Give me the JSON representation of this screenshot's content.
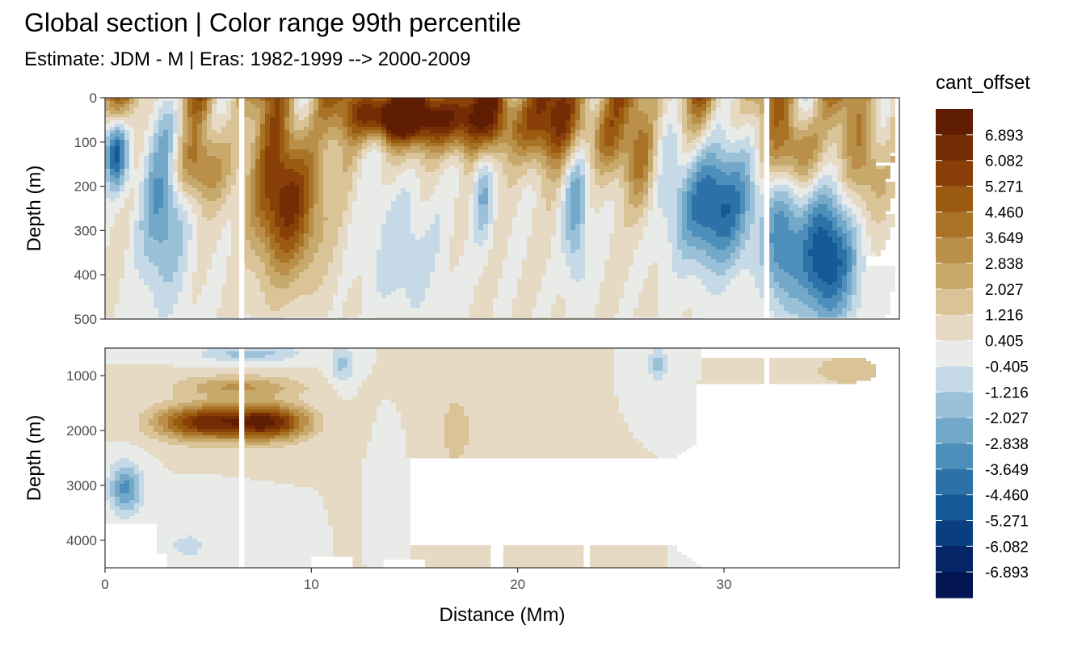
{
  "chart_data": {
    "type": "heatmap",
    "title": "Global section | Color range 99th percentile",
    "subtitle": "Estimate: JDM - M | Eras: 1982-1999 --> 2000-2009",
    "xlabel": "Distance (Mm)",
    "ylabel": "Depth (m)",
    "xlim": [
      0,
      38.5
    ],
    "x_ticks": [
      0,
      10,
      20,
      30
    ],
    "panels": [
      {
        "name": "upper",
        "ylim": [
          0,
          500
        ],
        "y_reversed": true,
        "y_ticks": [
          0,
          100,
          200,
          300,
          400,
          500
        ]
      },
      {
        "name": "lower",
        "ylim": [
          500,
          4500
        ],
        "y_reversed": true,
        "y_ticks": [
          1000,
          2000,
          3000,
          4000
        ]
      }
    ],
    "legend": {
      "title": "cant_offset",
      "placement": "right",
      "labels": [
        "6.893",
        "6.082",
        "5.271",
        "4.460",
        "3.649",
        "2.838",
        "2.027",
        "1.216",
        "0.405",
        "-0.405",
        "-1.216",
        "-2.027",
        "-2.838",
        "-3.649",
        "-4.460",
        "-5.271",
        "-6.082",
        "-6.893"
      ],
      "colors": [
        "#5f1d03",
        "#742c05",
        "#884008",
        "#9a5a10",
        "#a87327",
        "#b98f49",
        "#c8a96c",
        "#d9c397",
        "#e7dac4",
        "#e8ebe8",
        "#c5d9e7",
        "#9bc1d8",
        "#73a8c9",
        "#4d8ebb",
        "#2c72a8",
        "#135a97",
        "#0a3f7f",
        "#052667",
        "#021552"
      ]
    }
  }
}
